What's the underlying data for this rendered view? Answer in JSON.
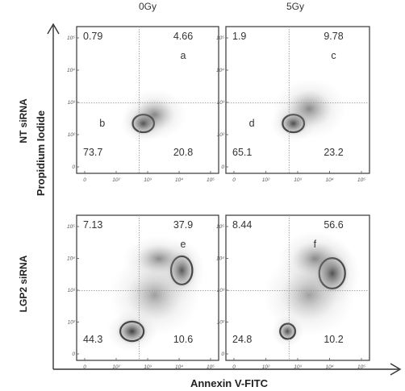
{
  "figure": {
    "column_titles": [
      "0Gy",
      "5Gy"
    ],
    "row_labels": [
      "NT siRNA",
      "LGP2 siRNA"
    ],
    "y_axis_label": "Propidium Iodide",
    "x_axis_label": "Annexin V-FITC"
  },
  "chart_data": {
    "type": "scatter",
    "panels": [
      {
        "column": "0Gy",
        "row": "NT siRNA",
        "letter": "a",
        "letter2": "b",
        "quadrants": {
          "upper_left": "0.79",
          "upper_right": "4.66",
          "lower_left": "73.7",
          "lower_right": "20.8"
        },
        "x_ticks": [
          "0",
          "10²",
          "10³",
          "10⁴",
          "10⁵"
        ],
        "y_ticks": [
          "0",
          "10²",
          "10³",
          "10⁴",
          "10⁵"
        ]
      },
      {
        "column": "5Gy",
        "row": "NT siRNA",
        "letter": "c",
        "letter2": "d",
        "quadrants": {
          "upper_left": "1.9",
          "upper_right": "9.78",
          "lower_left": "65.1",
          "lower_right": "23.2"
        },
        "x_ticks": [
          "0",
          "10²",
          "10³",
          "10⁴",
          "10⁵"
        ],
        "y_ticks": [
          "0",
          "10²",
          "10³",
          "10⁴",
          "10⁵"
        ]
      },
      {
        "column": "0Gy",
        "row": "LGP2 siRNA",
        "letter": "e",
        "letter2": "",
        "quadrants": {
          "upper_left": "7.13",
          "upper_right": "37.9",
          "lower_left": "44.3",
          "lower_right": "10.6"
        },
        "x_ticks": [
          "0",
          "10²",
          "10³",
          "10⁴",
          "10⁵"
        ],
        "y_ticks": [
          "0",
          "10²",
          "10³",
          "10⁴",
          "10⁵"
        ]
      },
      {
        "column": "5Gy",
        "row": "LGP2 siRNA",
        "letter": "f",
        "letter2": "",
        "quadrants": {
          "upper_left": "8.44",
          "upper_right": "56.6",
          "lower_left": "24.8",
          "lower_right": "10.2"
        },
        "x_ticks": [
          "0",
          "10²",
          "10³",
          "10⁴",
          "10⁵"
        ],
        "y_ticks": [
          "0",
          "10²",
          "10³",
          "10⁴",
          "10⁵"
        ]
      }
    ]
  }
}
